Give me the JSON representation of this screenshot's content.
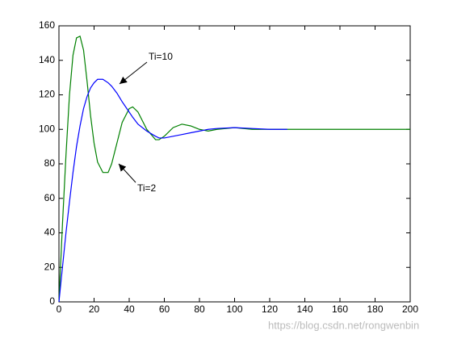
{
  "chart_data": {
    "type": "line",
    "x": [
      0,
      2,
      4,
      6,
      8,
      10,
      12,
      14,
      16,
      18,
      20,
      22,
      25,
      28,
      30,
      33,
      36,
      40,
      42,
      45,
      50,
      55,
      57,
      60,
      65,
      70,
      75,
      80,
      85,
      90,
      100,
      110,
      120,
      130,
      140,
      160,
      180,
      200
    ],
    "series": [
      {
        "name": "Ti=2",
        "color": "#008000",
        "values": [
          0,
          45,
          85,
          120,
          143,
          153,
          154,
          146,
          128,
          108,
          92,
          81,
          75,
          75,
          80,
          92,
          104,
          112,
          113,
          110,
          100,
          94,
          94,
          96,
          101,
          103,
          102,
          100,
          99,
          100,
          101,
          100,
          100,
          100,
          100,
          100,
          100,
          100
        ]
      },
      {
        "name": "Ti=10",
        "color": "#0000ff",
        "values": [
          0,
          20,
          40,
          58,
          75,
          90,
          102,
          112,
          119,
          124,
          127,
          129,
          129,
          127,
          125,
          121,
          116,
          110,
          107,
          103,
          99,
          96,
          95,
          95,
          96,
          97,
          98,
          99,
          100,
          100.5,
          101,
          100.5,
          100,
          100,
          null,
          null,
          null,
          null
        ]
      }
    ],
    "annotations": [
      "Ti=10",
      "Ti=2"
    ],
    "watermark": "https://blog.csdn.net/rongwenbin",
    "xlim": [
      0,
      200
    ],
    "xticks": [
      0,
      20,
      40,
      60,
      80,
      100,
      120,
      140,
      160,
      180,
      200
    ],
    "ylim": [
      0,
      160
    ],
    "yticks": [
      0,
      20,
      40,
      60,
      80,
      100,
      120,
      140,
      160
    ],
    "grid": false
  }
}
